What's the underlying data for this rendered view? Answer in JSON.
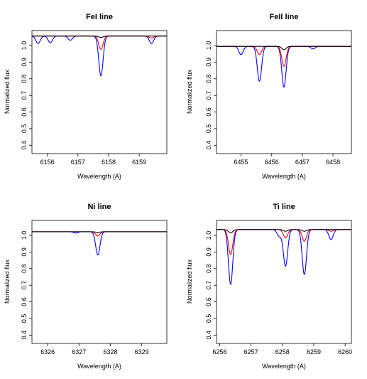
{
  "chart_data": [
    {
      "type": "line",
      "title": "FeI line",
      "xlabel": "Wavelength (A)",
      "ylabel": "Normalized flux",
      "xlim": [
        6155.5,
        6159.9
      ],
      "ylim": [
        0.35,
        1.09
      ],
      "xticks": [
        6156,
        6157,
        6158,
        6159
      ],
      "yticks": [
        0.4,
        0.5,
        0.6,
        0.7,
        0.8,
        0.9,
        1.0
      ],
      "grid": false,
      "legend": "none",
      "baseline": 1.057,
      "series": [
        {
          "color": "#0000ff",
          "lines": [
            [
              6155.7,
              0.045
            ],
            [
              6156.1,
              0.04
            ],
            [
              6156.75,
              0.025
            ],
            [
              6157.75,
              0.24
            ],
            [
              6159.4,
              0.045
            ]
          ]
        },
        {
          "color": "#ff0000",
          "lines": [
            [
              6157.75,
              0.08
            ],
            [
              6159.4,
              0.012
            ]
          ]
        },
        {
          "color": "#000000",
          "lines": [
            [
              6157.75,
              0.008
            ]
          ]
        }
      ]
    },
    {
      "type": "line",
      "title": "FeII line",
      "xlabel": "Wavelength (A)",
      "ylabel": "Normalized flux",
      "xlim": [
        6454.2,
        6458.6
      ],
      "ylim": [
        0.35,
        1.09
      ],
      "xticks": [
        6455,
        6456,
        6457,
        6458
      ],
      "yticks": [
        0.4,
        0.5,
        0.6,
        0.7,
        0.8,
        0.9,
        1.0
      ],
      "grid": false,
      "legend": "none",
      "baseline": 0.995,
      "series": [
        {
          "color": "#0000ff",
          "lines": [
            [
              6455.0,
              0.05
            ],
            [
              6455.6,
              0.21
            ],
            [
              6456.4,
              0.245
            ],
            [
              6457.35,
              0.015
            ]
          ]
        },
        {
          "color": "#ff0000",
          "lines": [
            [
              6455.6,
              0.05
            ],
            [
              6456.4,
              0.12
            ]
          ]
        },
        {
          "color": "#000000",
          "lines": [
            [
              6456.4,
              0.02
            ]
          ]
        }
      ]
    },
    {
      "type": "line",
      "title": "Ni line",
      "xlabel": "Wavelength (A)",
      "ylabel": "Normalized flux",
      "xlim": [
        6325.5,
        6329.8
      ],
      "ylim": [
        0.35,
        1.09
      ],
      "xticks": [
        6326,
        6327,
        6328,
        6329
      ],
      "yticks": [
        0.4,
        0.5,
        0.6,
        0.7,
        0.8,
        0.9,
        1.0
      ],
      "grid": false,
      "legend": "none",
      "baseline": 1.022,
      "series": [
        {
          "color": "#0000ff",
          "lines": [
            [
              6326.9,
              0.008
            ],
            [
              6327.6,
              0.14
            ]
          ]
        },
        {
          "color": "#ff0000",
          "lines": [
            [
              6327.6,
              0.025
            ]
          ]
        },
        {
          "color": "#000000",
          "lines": [
            [
              6327.6,
              0.004
            ]
          ]
        }
      ]
    },
    {
      "type": "line",
      "title": "Ti line",
      "xlabel": "Wavelength (A)",
      "ylabel": "Normalized flux",
      "xlim": [
        6255.9,
        6260.2
      ],
      "ylim": [
        0.35,
        1.09
      ],
      "xticks": [
        6256,
        6257,
        6258,
        6259,
        6260
      ],
      "yticks": [
        0.4,
        0.5,
        0.6,
        0.7,
        0.8,
        0.9,
        1.0
      ],
      "grid": false,
      "legend": "none",
      "baseline": 1.035,
      "series": [
        {
          "color": "#0000ff",
          "lines": [
            [
              6256.35,
              0.33
            ],
            [
              6257.9,
              0.04
            ],
            [
              6258.1,
              0.22
            ],
            [
              6258.7,
              0.27
            ],
            [
              6259.55,
              0.06
            ]
          ]
        },
        {
          "color": "#ff0000",
          "lines": [
            [
              6256.35,
              0.15
            ],
            [
              6258.1,
              0.05
            ],
            [
              6258.7,
              0.07
            ],
            [
              6259.55,
              0.01
            ]
          ]
        },
        {
          "color": "#000000",
          "lines": [
            [
              6256.35,
              0.02
            ],
            [
              6258.1,
              0.01
            ],
            [
              6258.7,
              0.01
            ]
          ]
        }
      ]
    }
  ]
}
